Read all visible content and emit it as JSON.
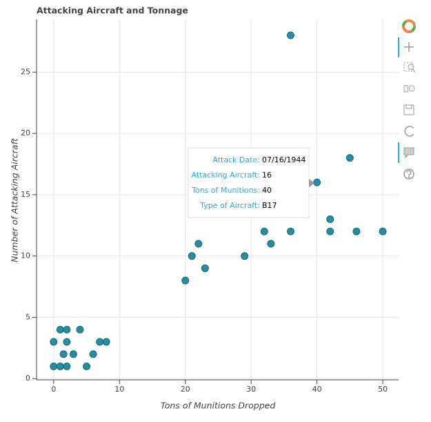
{
  "chart_data": {
    "type": "scatter",
    "title": "Attacking Aircraft and Tonnage",
    "x_label": "Tons of Munitions Dropped",
    "y_label": "Number of Attacking Aircraft",
    "x": [
      0,
      0,
      1,
      1,
      1.5,
      2,
      2,
      2,
      3,
      4,
      5,
      6,
      7,
      8,
      20,
      21,
      22,
      23,
      29,
      32,
      33,
      36,
      36,
      40,
      42,
      42,
      45,
      46,
      50
    ],
    "values": [
      1,
      3,
      4,
      1,
      2,
      4,
      3,
      1,
      2,
      4,
      1,
      2,
      3,
      3,
      8,
      10,
      11,
      9,
      10,
      12,
      11,
      12,
      28,
      16,
      13,
      12,
      18,
      12,
      12
    ],
    "color": "#1f8cb4",
    "line_color": "#2a6e3c",
    "xlim": [
      -2.6,
      52.4
    ],
    "ylim": [
      -0.1,
      29.3
    ],
    "xticks": [
      0,
      10,
      20,
      30,
      40,
      50
    ],
    "yticks": [
      0,
      5,
      10,
      15,
      20,
      25
    ],
    "grid": true
  },
  "tooltip": {
    "rows": [
      {
        "label": "Attack Date:",
        "value": "07/16/1944"
      },
      {
        "label": "Attacking Aircraft:",
        "value": "16"
      },
      {
        "label": "Tons of Munitions:",
        "value": "40"
      },
      {
        "label": "Type of Aircraft:",
        "value": "B17"
      }
    ]
  }
}
